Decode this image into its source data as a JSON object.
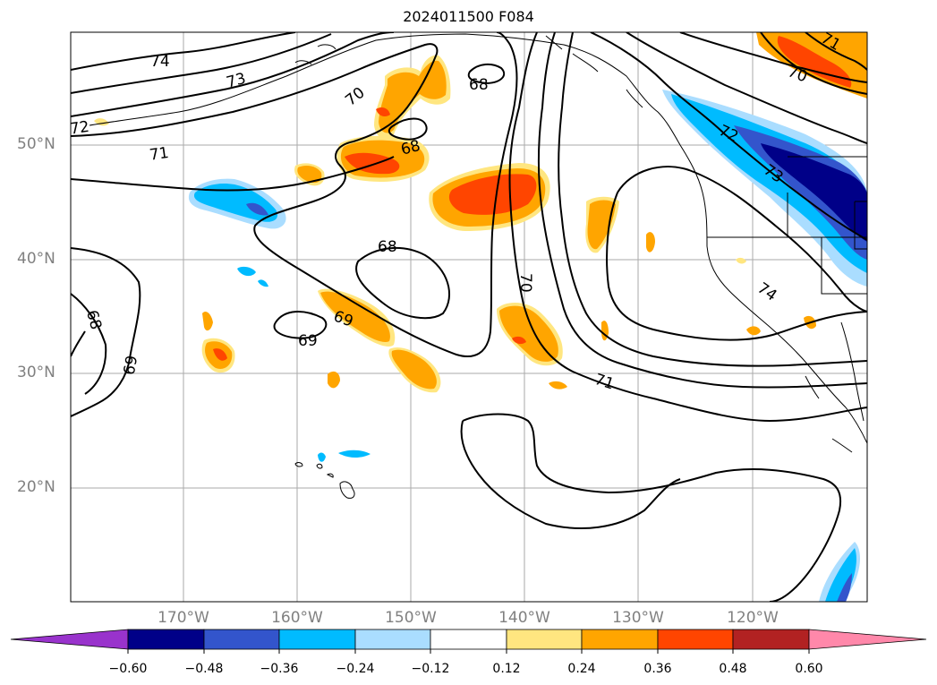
{
  "title": "2024011500 F084",
  "map": {
    "latitude_labels": [
      "50°N",
      "40°N",
      "30°N",
      "20°N"
    ],
    "longitude_labels": [
      "170°W",
      "160°W",
      "150°W",
      "140°W",
      "130°W",
      "120°W"
    ],
    "contour_labels": [
      "74",
      "73",
      "72",
      "71",
      "70",
      "68",
      "68",
      "68",
      "69",
      "69",
      "69",
      "68",
      "70",
      "71",
      "70",
      "71",
      "72",
      "73",
      "74"
    ]
  },
  "colorbar": {
    "tick_labels": [
      "−0.60",
      "−0.48",
      "−0.36",
      "−0.24",
      "−0.12",
      "0.12",
      "0.24",
      "0.36",
      "0.48",
      "0.60"
    ],
    "colors": [
      "#9933cc",
      "#000088",
      "#3355cc",
      "#00bbff",
      "#aaddff",
      "#ffffff",
      "#ffe680",
      "#ffa500",
      "#ff4500",
      "#b22222",
      "#ff88aa"
    ]
  }
}
